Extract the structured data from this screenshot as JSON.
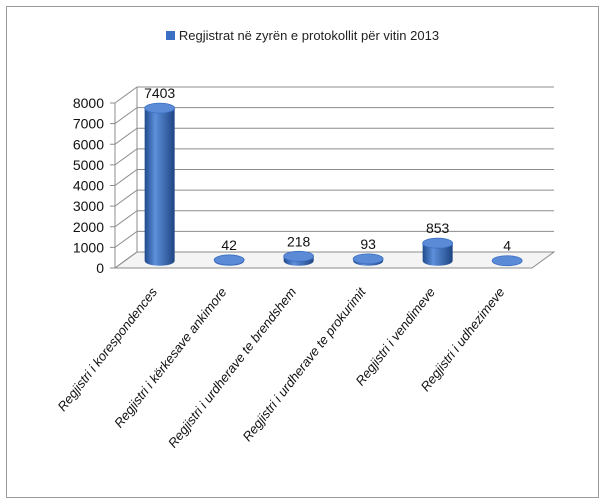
{
  "chart_data": {
    "type": "bar",
    "title": "",
    "xlabel": "",
    "ylabel": "",
    "ylim": [
      0,
      8000
    ],
    "yticks": [
      0,
      1000,
      2000,
      3000,
      4000,
      5000,
      6000,
      7000,
      8000
    ],
    "grid": true,
    "legend_position": "top",
    "categories": [
      "Regjistri i korespondences",
      "Regjistri i kërkesave ankimore",
      "Regjistri i urdherave te brendshem",
      "Regjistri i urdherave te prokurimit",
      "Regjistri i vendimeve",
      "Regjistri i udhezimeve"
    ],
    "series": [
      {
        "name": "Regjistrat në zyrën e protokollit për vitin 2013",
        "values": [
          7403,
          42,
          218,
          93,
          853,
          4
        ],
        "color": "#3a6fc4"
      }
    ],
    "data_labels": [
      "7403",
      "42",
      "218",
      "93",
      "853",
      "4"
    ]
  }
}
